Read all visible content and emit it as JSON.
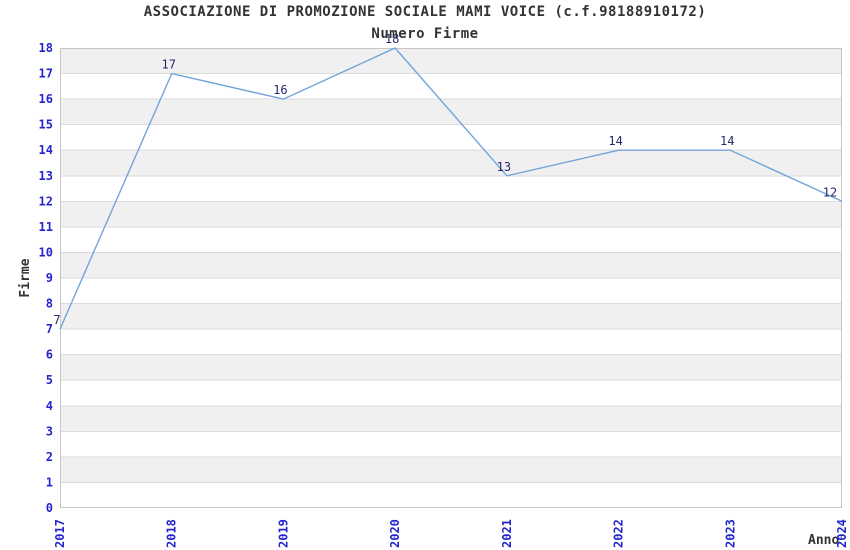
{
  "chart_data": {
    "type": "line",
    "title": "ASSOCIAZIONE DI PROMOZIONE SOCIALE MAMI VOICE (c.f.98188910172)",
    "subtitle": "Numero Firme",
    "xlabel": "Anno",
    "ylabel": "Firme",
    "categories": [
      "2017",
      "2018",
      "2019",
      "2020",
      "2021",
      "2022",
      "2023",
      "2024"
    ],
    "series": [
      {
        "name": "Numero Firme",
        "values": [
          7,
          17,
          16,
          18,
          13,
          14,
          14,
          12
        ]
      }
    ],
    "point_labels_visible": true,
    "ylim": [
      0,
      18
    ],
    "y_tick_step": 1,
    "x_tick_rotation_degrees": 90,
    "grid": "horizontal",
    "background_bands": "alternating-gray-on-odd-intervals",
    "legend": "none",
    "colors": {
      "line": "#73a5da",
      "axis_tick_labels": "#2525cf",
      "point_labels": "#28286e",
      "band": "#f0f0f0",
      "grid": "#dbdbdb",
      "plot_border": "#c6c6c6",
      "text": "#333333",
      "background": "#ffffff"
    }
  }
}
